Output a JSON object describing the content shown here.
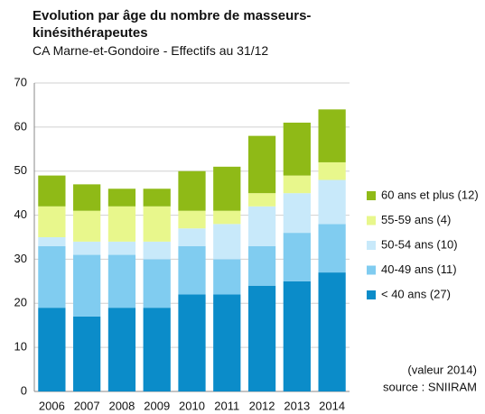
{
  "chart_data": {
    "type": "stacked_bar",
    "title": "Evolution par âge du nombre de masseurs-kinésithérapeutes",
    "subtitle": "CA Marne-et-Gondoire - Effectifs au 31/12",
    "categories": [
      "2006",
      "2007",
      "2008",
      "2009",
      "2010",
      "2011",
      "2012",
      "2013",
      "2014"
    ],
    "series": [
      {
        "name": "< 40 ans (27)",
        "color": "#0b8cc9",
        "values": [
          19,
          17,
          19,
          19,
          22,
          22,
          24,
          25,
          27
        ]
      },
      {
        "name": "40-49 ans (11)",
        "color": "#80ccf0",
        "values": [
          14,
          14,
          12,
          11,
          11,
          8,
          9,
          11,
          11
        ]
      },
      {
        "name": "50-54 ans (10)",
        "color": "#c8e9fa",
        "values": [
          2,
          3,
          3,
          4,
          4,
          8,
          9,
          9,
          10
        ]
      },
      {
        "name": "55-59 ans (4)",
        "color": "#e8f78c",
        "values": [
          7,
          7,
          8,
          8,
          4,
          3,
          3,
          4,
          4
        ]
      },
      {
        "name": "60 ans et plus (12)",
        "color": "#8fba17",
        "values": [
          7,
          6,
          4,
          4,
          9,
          10,
          13,
          12,
          12
        ]
      }
    ],
    "ylim": [
      0,
      70
    ],
    "yticks": [
      0,
      10,
      20,
      30,
      40,
      50,
      60,
      70
    ],
    "grid": true,
    "annotations": [
      "(valeur 2014)",
      "source : SNIIRAM"
    ]
  }
}
